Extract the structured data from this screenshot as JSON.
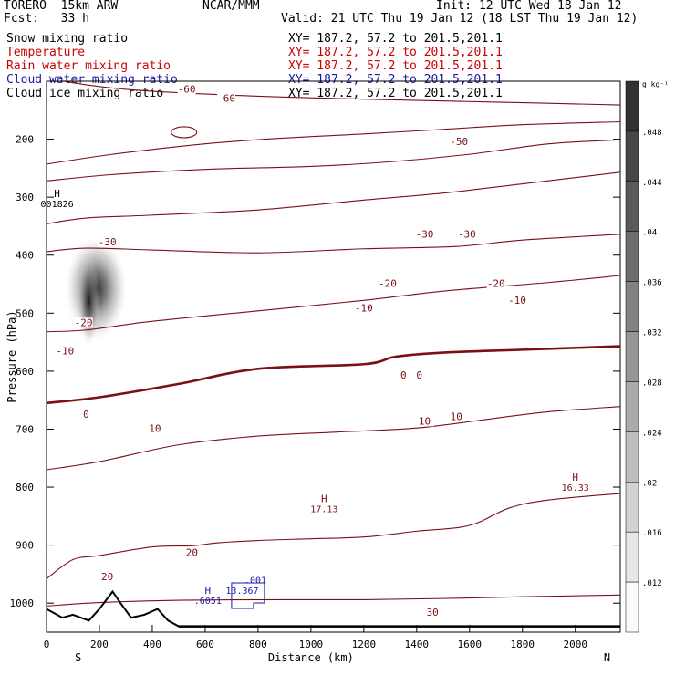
{
  "header": {
    "model": "TORERO  15km ARW",
    "forecast": "Fcst:   33 h",
    "source": "NCAR/MMM",
    "init": "Init: 12 UTC Wed 18 Jan 12",
    "valid": "Valid: 21 UTC Thu 19 Jan 12 (18 LST Thu 19 Jan 12)"
  },
  "legend": [
    {
      "name": "Snow mixing ratio",
      "color": "#000000",
      "xy": "XY= 187.2, 57.2 to 201.5,201.1"
    },
    {
      "name": "Temperature",
      "color": "#cc0000",
      "xy": "XY= 187.2, 57.2 to 201.5,201.1"
    },
    {
      "name": "Rain water mixing ratio",
      "color": "#cc0000",
      "xy": "XY= 187.2, 57.2 to 201.5,201.1"
    },
    {
      "name": "Cloud water mixing ratio",
      "color": "#1a1aa6",
      "xy": "XY= 187.2, 57.2 to 201.5,201.1"
    },
    {
      "name": "Cloud ice mixing ratio",
      "color": "#000000",
      "xy": "XY= 187.2, 57.2 to 201.5,201.1"
    }
  ],
  "colors": {
    "temperature": "#7a1016",
    "terrain": "#000000",
    "cloudwater": "#1a1aa6"
  },
  "chart_data": {
    "type": "cross-section contour",
    "xlabel": "Distance (km)",
    "ylabel": "Pressure (hPa)",
    "xlim": [
      0,
      2170
    ],
    "ylim": [
      1050,
      100
    ],
    "xticks": [
      0,
      200,
      400,
      600,
      800,
      1000,
      1200,
      1400,
      1600,
      1800,
      2000
    ],
    "yticks": [
      200,
      300,
      400,
      500,
      600,
      700,
      800,
      900,
      1000
    ],
    "end_labels": {
      "left": "S",
      "right": "N"
    },
    "temperature_isotherms": [
      {
        "value": -60,
        "points": [
          [
            60,
            100
          ],
          [
            300,
            114
          ],
          [
            700,
            124
          ],
          [
            1200,
            131
          ],
          [
            1700,
            136
          ],
          [
            2170,
            141
          ]
        ]
      },
      {
        "value": -50,
        "points": [
          [
            0,
            243
          ],
          [
            250,
            226
          ],
          [
            600,
            208
          ],
          [
            900,
            198
          ],
          [
            1200,
            191
          ],
          [
            1500,
            183
          ],
          [
            1800,
            175
          ],
          [
            2170,
            170
          ]
        ]
      },
      {
        "value": -40,
        "points": [
          [
            0,
            272
          ],
          [
            250,
            261
          ],
          [
            600,
            252
          ],
          [
            1000,
            247
          ],
          [
            1300,
            239
          ],
          [
            1600,
            226
          ],
          [
            1900,
            208
          ],
          [
            2170,
            201
          ]
        ]
      },
      {
        "value": -30,
        "points": [
          [
            0,
            346
          ],
          [
            150,
            336
          ],
          [
            400,
            331
          ],
          [
            800,
            322
          ],
          [
            1200,
            305
          ],
          [
            1500,
            293
          ],
          [
            1800,
            277
          ],
          [
            2170,
            257
          ]
        ]
      },
      {
        "value": -20,
        "points": [
          [
            0,
            394
          ],
          [
            150,
            388
          ],
          [
            400,
            391
          ],
          [
            800,
            396
          ],
          [
            1200,
            389
          ],
          [
            1550,
            385
          ],
          [
            1800,
            374
          ],
          [
            2170,
            364
          ]
        ]
      },
      {
        "value": -10,
        "points": [
          [
            0,
            532
          ],
          [
            150,
            529
          ],
          [
            400,
            514
          ],
          [
            800,
            496
          ],
          [
            1200,
            478
          ],
          [
            1500,
            462
          ],
          [
            1900,
            447
          ],
          [
            2170,
            435
          ]
        ]
      },
      {
        "value": 0,
        "bold": true,
        "points": [
          [
            0,
            655
          ],
          [
            200,
            645
          ],
          [
            500,
            622
          ],
          [
            800,
            596
          ],
          [
            1200,
            588
          ],
          [
            1320,
            575
          ],
          [
            1500,
            568
          ],
          [
            1800,
            563
          ],
          [
            2170,
            557
          ]
        ]
      },
      {
        "value": 10,
        "points": [
          [
            0,
            770
          ],
          [
            200,
            756
          ],
          [
            500,
            727
          ],
          [
            800,
            712
          ],
          [
            1100,
            705
          ],
          [
            1400,
            698
          ],
          [
            1700,
            681
          ],
          [
            1900,
            670
          ],
          [
            2170,
            661
          ]
        ]
      },
      {
        "value": 20,
        "points": [
          [
            0,
            958
          ],
          [
            100,
            925
          ],
          [
            200,
            918
          ],
          [
            400,
            903
          ],
          [
            550,
            901
          ],
          [
            650,
            896
          ],
          [
            800,
            892
          ],
          [
            1000,
            889
          ],
          [
            1200,
            886
          ],
          [
            1400,
            876
          ],
          [
            1600,
            866
          ],
          [
            1750,
            836
          ],
          [
            1900,
            822
          ],
          [
            2170,
            811
          ]
        ]
      },
      {
        "value": 30,
        "points": [
          [
            0,
            1005
          ],
          [
            200,
            999
          ],
          [
            500,
            995
          ],
          [
            900,
            994
          ],
          [
            1200,
            994
          ],
          [
            1500,
            992
          ],
          [
            1800,
            989
          ],
          [
            2170,
            986
          ]
        ]
      }
    ],
    "isotherm_labels": [
      {
        "text": "-60",
        "x": 530,
        "p": 120
      },
      {
        "text": "-60",
        "x": 680,
        "p": 135
      },
      {
        "text": "-50",
        "x": 1560,
        "p": 210
      },
      {
        "text": "-30",
        "x": 1430,
        "p": 370
      },
      {
        "text": "-30",
        "x": 1590,
        "p": 370
      },
      {
        "text": "-30",
        "x": 230,
        "p": 383
      },
      {
        "text": "-20",
        "x": 140,
        "p": 522
      },
      {
        "text": "-20",
        "x": 1290,
        "p": 455
      },
      {
        "text": "-20",
        "x": 1700,
        "p": 455
      },
      {
        "text": "-10",
        "x": 1200,
        "p": 497
      },
      {
        "text": "-10",
        "x": 1780,
        "p": 484
      },
      {
        "text": "-10",
        "x": 70,
        "p": 571
      },
      {
        "text": "0",
        "x": 1350,
        "p": 613
      },
      {
        "text": "0",
        "x": 1410,
        "p": 613
      },
      {
        "text": "0",
        "x": 150,
        "p": 680
      },
      {
        "text": "10",
        "x": 410,
        "p": 705
      },
      {
        "text": "10",
        "x": 1430,
        "p": 692
      },
      {
        "text": "10",
        "x": 1550,
        "p": 684
      },
      {
        "text": "20",
        "x": 550,
        "p": 919
      },
      {
        "text": "20",
        "x": 230,
        "p": 960
      },
      {
        "text": "30",
        "x": 1460,
        "p": 1022
      }
    ],
    "extrema": [
      {
        "text": "H",
        "sub": "001826",
        "x": 40,
        "p": 300
      },
      {
        "text": "H",
        "sub": "17.13",
        "x": 1050,
        "p": 826
      },
      {
        "text": "H",
        "sub": "16.33",
        "x": 2000,
        "p": 789
      },
      {
        "text": "H",
        "sub": ".6051",
        "x": 610,
        "p": 984
      }
    ],
    "cloud_water_labels": [
      ".001",
      "13.367"
    ],
    "snow_max": {
      "x": 160,
      "p": 460,
      "pmin": 400,
      "pmax": 540
    },
    "terrain": [
      [
        0,
        1010
      ],
      [
        60,
        1025
      ],
      [
        100,
        1020
      ],
      [
        160,
        1030
      ],
      [
        200,
        1010
      ],
      [
        250,
        980
      ],
      [
        280,
        1000
      ],
      [
        320,
        1025
      ],
      [
        370,
        1020
      ],
      [
        420,
        1010
      ],
      [
        460,
        1030
      ],
      [
        500,
        1040
      ],
      [
        2170,
        1040
      ]
    ],
    "colorbar": {
      "unit": "g kg⁻¹",
      "ticks": [
        ".012",
        ".016",
        ".02",
        ".024",
        ".028",
        ".032",
        ".036",
        ".04",
        ".044",
        ".048"
      ]
    }
  }
}
